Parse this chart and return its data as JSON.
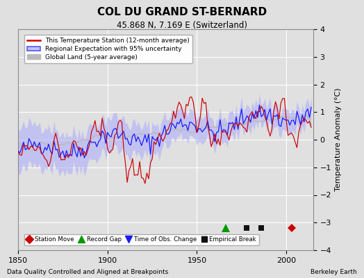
{
  "title": "COL DU GRAND ST-BERNARD",
  "subtitle": "45.868 N, 7.169 E (Switzerland)",
  "xlabel_left": "Data Quality Controlled and Aligned at Breakpoints",
  "xlabel_right": "Berkeley Earth",
  "ylabel": "Temperature Anomaly (°C)",
  "xlim": [
    1850,
    2015
  ],
  "ylim": [
    -4,
    4
  ],
  "yticks": [
    -4,
    -3,
    -2,
    -1,
    0,
    1,
    2,
    3,
    4
  ],
  "xticks": [
    1850,
    1900,
    1950,
    2000
  ],
  "bg_color": "#e0e0e0",
  "grid_color": "#ffffff",
  "station_color": "#cc0000",
  "regional_color": "#1a1aff",
  "uncertainty_color": "#aaaaff",
  "global_color": "#bbbbbb",
  "legend_labels": [
    "This Temperature Station (12-month average)",
    "Regional Expectation with 95% uncertainty",
    "Global Land (5-year average)"
  ],
  "marker_events": {
    "record_gap_years": [
      1966
    ],
    "empirical_break_years": [
      1978,
      1986
    ],
    "station_move_years": [
      2003
    ],
    "obs_change_years": []
  },
  "seed": 42,
  "start_year": 1850,
  "end_year": 2014
}
